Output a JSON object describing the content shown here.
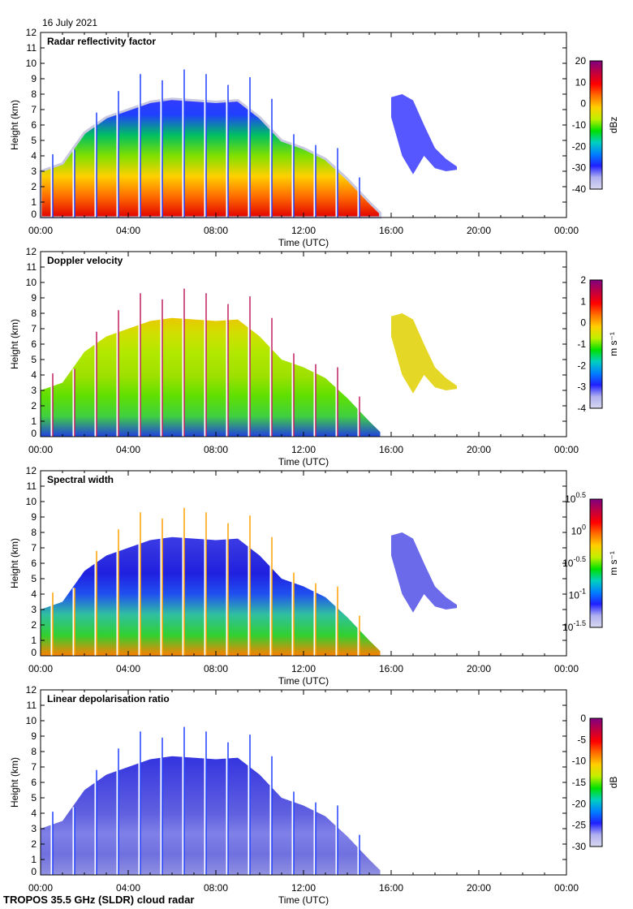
{
  "header": {
    "date": "16 July 2021"
  },
  "footer": {
    "instrument": "TROPOS 35.5 GHz (SLDR) cloud radar"
  },
  "chart_data": [
    {
      "type": "heatmap",
      "title": "Radar reflectivity factor",
      "xlabel": "Time (UTC)",
      "ylabel": "Height (km)",
      "x_ticks": [
        "00:00",
        "04:00",
        "08:00",
        "12:00",
        "16:00",
        "20:00",
        "00:00"
      ],
      "y_ticks": [
        "0",
        "1",
        "2",
        "3",
        "4",
        "5",
        "6",
        "7",
        "8",
        "9",
        "10",
        "11",
        "12"
      ],
      "xlim_hours": [
        0,
        24
      ],
      "ylim_km": [
        0,
        12
      ],
      "colorbar": {
        "unit": "dBz",
        "ticks": [
          "20",
          "10",
          "0",
          "-10",
          "-20",
          "-30",
          "-40"
        ],
        "range": [
          -40,
          20
        ]
      },
      "profile_colors": [
        "#e00000",
        "#ff6a00",
        "#ffd000",
        "#7fe000",
        "#00c060",
        "#2040ff",
        "#3a3aff"
      ]
    },
    {
      "type": "heatmap",
      "title": "Doppler velocity",
      "xlabel": "Time (UTC)",
      "ylabel": "Height (km)",
      "x_ticks": [
        "00:00",
        "04:00",
        "08:00",
        "12:00",
        "16:00",
        "20:00",
        "00:00"
      ],
      "y_ticks": [
        "0",
        "1",
        "2",
        "3",
        "4",
        "5",
        "6",
        "7",
        "8",
        "9",
        "10",
        "11",
        "12"
      ],
      "xlim_hours": [
        0,
        24
      ],
      "ylim_km": [
        0,
        12
      ],
      "colorbar": {
        "unit": "m s⁻¹",
        "ticks": [
          "2",
          "1",
          "0",
          "-1",
          "-2",
          "-3",
          "-4"
        ],
        "range": [
          -4,
          2
        ]
      },
      "profile_colors": [
        "#2040e0",
        "#40d040",
        "#60e000",
        "#a0e000",
        "#b0e800",
        "#d0e000",
        "#f0c000"
      ]
    },
    {
      "type": "heatmap",
      "title": "Spectral width",
      "xlabel": "Time (UTC)",
      "ylabel": "Height (km)",
      "x_ticks": [
        "00:00",
        "04:00",
        "08:00",
        "12:00",
        "16:00",
        "20:00",
        "00:00"
      ],
      "y_ticks": [
        "0",
        "1",
        "2",
        "3",
        "4",
        "5",
        "6",
        "7",
        "8",
        "9",
        "10",
        "11",
        "12"
      ],
      "xlim_hours": [
        0,
        24
      ],
      "ylim_km": [
        0,
        12
      ],
      "colorbar": {
        "unit": "m s⁻¹",
        "ticks": [
          "10^0.5",
          "10^0",
          "10^-0.5",
          "10^-1",
          "10^-1.5"
        ],
        "range": [
          -1.5,
          0.5
        ],
        "scale": "log"
      },
      "profile_colors": [
        "#ff8000",
        "#30d030",
        "#30c0a0",
        "#2050f0",
        "#2020e0",
        "#3030e0",
        "#4040e8"
      ]
    },
    {
      "type": "heatmap",
      "title": "Linear depolarisation ratio",
      "xlabel": "Time (UTC)",
      "ylabel": "Height (km)",
      "x_ticks": [
        "00:00",
        "04:00",
        "08:00",
        "12:00",
        "16:00",
        "20:00",
        "00:00"
      ],
      "y_ticks": [
        "0",
        "1",
        "2",
        "3",
        "4",
        "5",
        "6",
        "7",
        "8",
        "9",
        "10",
        "11",
        "12"
      ],
      "xlim_hours": [
        0,
        24
      ],
      "ylim_km": [
        0,
        12
      ],
      "colorbar": {
        "unit": "dB",
        "ticks": [
          "0",
          "-5",
          "-10",
          "-15",
          "-20",
          "-25",
          "-30"
        ],
        "range": [
          -30,
          0
        ]
      },
      "profile_colors": [
        "#9090e0",
        "#7070e0",
        "#8080e8",
        "#6060e0",
        "#5050e0",
        "#4040e0",
        "#3030e0"
      ]
    }
  ],
  "cloud_envelope": {
    "main": {
      "hours": [
        0,
        1,
        2,
        3,
        4,
        5,
        6,
        7,
        8,
        9,
        10,
        11,
        12,
        13,
        14,
        15,
        15.5
      ],
      "top_km": [
        3,
        3.5,
        5.5,
        6.5,
        7,
        7.5,
        7.7,
        7.6,
        7.5,
        7.6,
        6.5,
        5,
        4.5,
        3.8,
        2.5,
        1,
        0.3
      ]
    },
    "second": {
      "hours": [
        16,
        16.5,
        17,
        17.5,
        18,
        18.5,
        19
      ],
      "top_km": [
        7.8,
        8,
        7.6,
        6,
        4.5,
        3.8,
        3.3
      ],
      "base_km": [
        6.5,
        4,
        2.8,
        4,
        3.2,
        3,
        3.1
      ]
    },
    "streaks": {
      "hours": [
        0.5,
        1.5,
        2.5,
        3.5,
        4.5,
        5.5,
        6.5,
        7.5,
        8.5,
        9.5,
        10.5,
        11.5,
        12.5,
        13.5,
        14.5
      ],
      "top_km": [
        4.1,
        4.4,
        6.8,
        8.2,
        9.3,
        8.9,
        9.6,
        9.3,
        8.6,
        9.1,
        7.7,
        5.4,
        4.7,
        4.5,
        2.6
      ]
    }
  },
  "colormap": [
    "#d8d8f0",
    "#b0b0f0",
    "#2020ff",
    "#0080ff",
    "#00d0c0",
    "#00e000",
    "#c0f000",
    "#ffd000",
    "#ff7000",
    "#ff0000",
    "#c00040",
    "#800080"
  ]
}
